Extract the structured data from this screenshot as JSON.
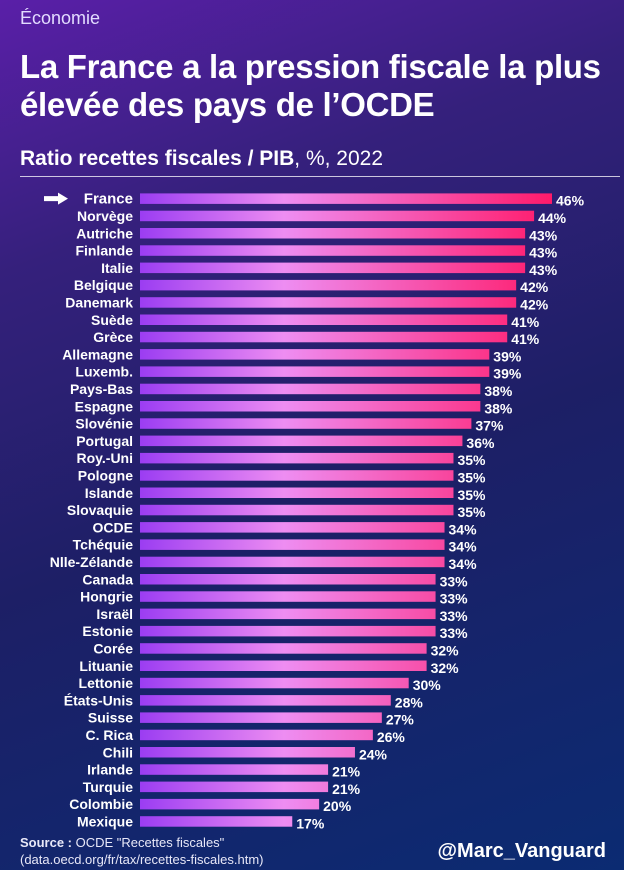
{
  "header": {
    "category": "Économie",
    "title": "La France a la pression fiscale la plus élevée des pays de l’OCDE",
    "subtitle_bold": "Ratio recettes fiscales / PIB",
    "subtitle_rest": ", %, 2022"
  },
  "footer": {
    "source_label": "Source :",
    "source_text": " OCDE \"Recettes fiscales\" (data.oecd.org/fr/tax/recettes-fiscales.htm)",
    "handle": "@Marc_Vanguard"
  },
  "colors": {
    "bar_start": "#9b3df2",
    "bar_mid": "#ee8df2",
    "bar_end": "#ff1a6a",
    "text": "#ffffff"
  },
  "chart_data": {
    "type": "bar",
    "orientation": "horizontal",
    "title": "Ratio recettes fiscales / PIB, %, 2022",
    "highlight": "France",
    "value_suffix": "%",
    "categories": [
      "France",
      "Norvège",
      "Autriche",
      "Finlande",
      "Italie",
      "Belgique",
      "Danemark",
      "Suède",
      "Grèce",
      "Allemagne",
      "Luxemb.",
      "Pays-Bas",
      "Espagne",
      "Slovénie",
      "Portugal",
      "Roy.-Uni",
      "Pologne",
      "Islande",
      "Slovaquie",
      "OCDE",
      "Tchéquie",
      "Nlle-Zélande",
      "Canada",
      "Hongrie",
      "Israël",
      "Estonie",
      "Corée",
      "Lituanie",
      "Lettonie",
      "États-Unis",
      "Suisse",
      "C. Rica",
      "Chili",
      "Irlande",
      "Turquie",
      "Colombie",
      "Mexique"
    ],
    "values": [
      46,
      44,
      43,
      43,
      43,
      42,
      42,
      41,
      41,
      39,
      39,
      38,
      38,
      37,
      36,
      35,
      35,
      35,
      35,
      34,
      34,
      34,
      33,
      33,
      33,
      33,
      32,
      32,
      30,
      28,
      27,
      26,
      24,
      21,
      21,
      20,
      17
    ],
    "labels": [
      "46%",
      "44%",
      "43%",
      "43%",
      "43%",
      "42%",
      "42%",
      "41%",
      "41%",
      "39%",
      "39%",
      "38%",
      "38%",
      "37%",
      "36%",
      "35%",
      "35%",
      "35%",
      "35%",
      "34%",
      "34%",
      "34%",
      "33%",
      "33%",
      "33%",
      "33%",
      "32%",
      "32%",
      "30%",
      "28%",
      "27%",
      "26%",
      "24%",
      "21%",
      "21%",
      "20%",
      "17%"
    ],
    "xlim": [
      0,
      46
    ]
  }
}
